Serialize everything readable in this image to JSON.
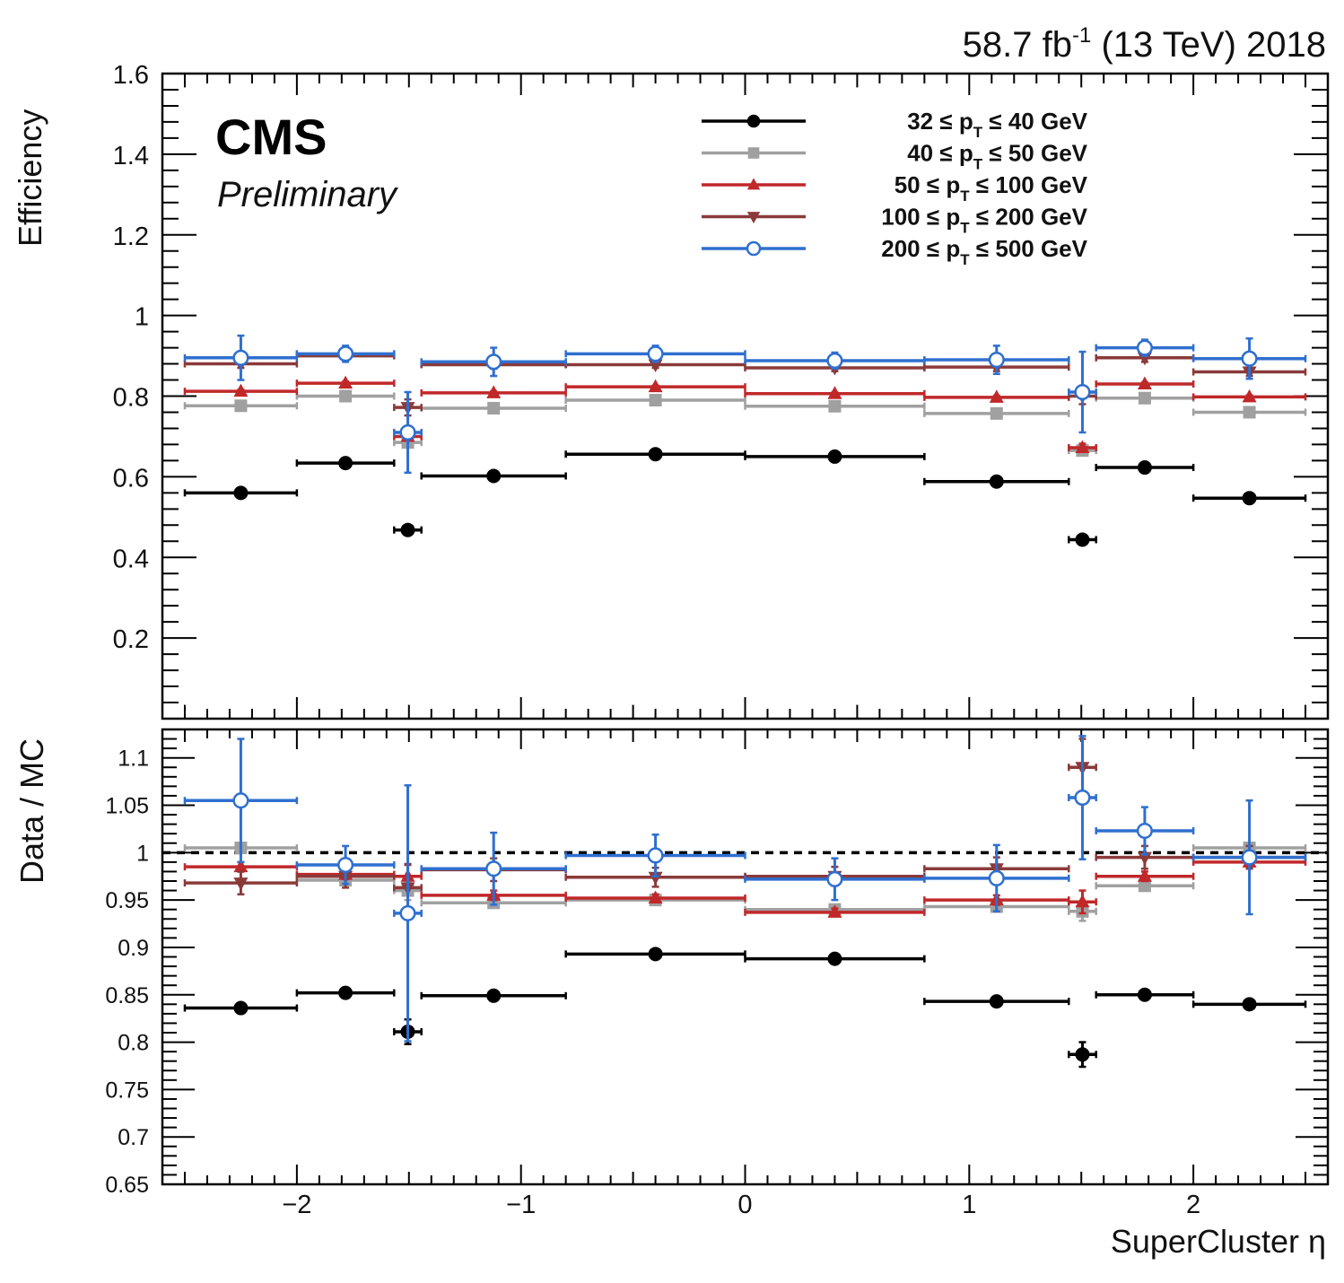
{
  "lumi_label": "58.7 fb",
  "lumi_superscript": "-1",
  "lumi_tail": " (13 TeV) 2018",
  "experiment_label": "CMS",
  "status_label": "Preliminary",
  "colors": {
    "pt32_40": "#000000",
    "pt40_50": "#a0a0a0",
    "pt50_100": "#c0282a",
    "pt100_200": "#8b3a3a",
    "pt200_500": "#2f6fcf"
  },
  "legend_pt_symbol": "p",
  "legend_pt_subscript": "T",
  "legend_le_symbol": "≤",
  "chart_data": [
    {
      "panel": "top",
      "type": "scatter",
      "ylabel": "Efficiency",
      "xlabel": "",
      "xlim": [
        -2.6,
        2.6
      ],
      "ylim": [
        0,
        1.6
      ],
      "yticks": [
        "0.2",
        "0.4",
        "0.6",
        "0.8",
        "1",
        "1.2",
        "1.4",
        "1.6"
      ],
      "bins": [
        [
          -2.5,
          -2.0
        ],
        [
          -2.0,
          -1.566
        ],
        [
          -1.566,
          -1.4442
        ],
        [
          -1.4442,
          -0.8
        ],
        [
          -0.8,
          0.0
        ],
        [
          0.0,
          0.8
        ],
        [
          0.8,
          1.4442
        ],
        [
          1.4442,
          1.566
        ],
        [
          1.566,
          2.0
        ],
        [
          2.0,
          2.5
        ]
      ],
      "x": [
        -2.25,
        -1.783,
        -1.505,
        -1.122,
        -0.4,
        0.4,
        1.122,
        1.505,
        1.783,
        2.25
      ],
      "legend_position": "top-right",
      "series": [
        {
          "name": "32 ≤ pT ≤ 40 GeV",
          "pt_low": "32",
          "pt_high": "40",
          "marker": "filled-circle",
          "color_key": "pt32_40",
          "values": [
            0.56,
            0.634,
            0.468,
            0.602,
            0.656,
            0.65,
            0.588,
            0.444,
            0.623,
            0.547
          ],
          "errors": [
            0.004,
            0.004,
            0.008,
            0.004,
            0.003,
            0.003,
            0.004,
            0.008,
            0.004,
            0.004
          ]
        },
        {
          "name": "40 ≤ pT ≤ 50 GeV",
          "pt_low": "40",
          "pt_high": "50",
          "marker": "filled-square",
          "color_key": "pt40_50",
          "values": [
            0.776,
            0.8,
            0.685,
            0.77,
            0.79,
            0.775,
            0.757,
            0.665,
            0.795,
            0.76
          ],
          "errors": [
            0.004,
            0.004,
            0.01,
            0.004,
            0.003,
            0.003,
            0.004,
            0.01,
            0.004,
            0.004
          ]
        },
        {
          "name": "50 ≤ pT ≤ 100 GeV",
          "pt_low": "50",
          "pt_high": "100",
          "marker": "filled-triangle-up",
          "color_key": "pt50_100",
          "values": [
            0.812,
            0.832,
            0.7,
            0.808,
            0.823,
            0.806,
            0.797,
            0.672,
            0.83,
            0.798
          ],
          "errors": [
            0.004,
            0.004,
            0.01,
            0.004,
            0.003,
            0.003,
            0.004,
            0.01,
            0.004,
            0.004
          ]
        },
        {
          "name": "100 ≤ pT ≤ 200 GeV",
          "pt_low": "100",
          "pt_high": "200",
          "marker": "filled-triangle-down",
          "color_key": "pt100_200",
          "values": [
            0.88,
            0.9,
            0.772,
            0.878,
            0.878,
            0.87,
            0.872,
            0.8,
            0.895,
            0.86
          ],
          "errors": [
            0.01,
            0.01,
            0.02,
            0.01,
            0.008,
            0.008,
            0.01,
            0.02,
            0.01,
            0.01
          ]
        },
        {
          "name": "200 ≤ pT ≤ 500 GeV",
          "pt_low": "200",
          "pt_high": "500",
          "marker": "open-circle",
          "color_key": "pt200_500",
          "values": [
            0.895,
            0.905,
            0.71,
            0.885,
            0.905,
            0.888,
            0.89,
            0.81,
            0.92,
            0.893
          ],
          "errors": [
            0.055,
            0.02,
            0.1,
            0.035,
            0.02,
            0.02,
            0.035,
            0.1,
            0.02,
            0.05
          ]
        }
      ]
    },
    {
      "panel": "bottom",
      "type": "scatter",
      "ylabel": "Data / MC",
      "xlabel": "SuperCluster η",
      "xlim": [
        -2.6,
        2.6
      ],
      "ylim": [
        0.65,
        1.13
      ],
      "yticks": [
        "0.65",
        "0.7",
        "0.75",
        "0.8",
        "0.85",
        "0.9",
        "0.95",
        "1",
        "1.05",
        "1.1"
      ],
      "xticks": [
        "−2",
        "−1",
        "0",
        "1",
        "2"
      ],
      "reference_line": 1.0,
      "bins": [
        [
          -2.5,
          -2.0
        ],
        [
          -2.0,
          -1.566
        ],
        [
          -1.566,
          -1.4442
        ],
        [
          -1.4442,
          -0.8
        ],
        [
          -0.8,
          0.0
        ],
        [
          0.0,
          0.8
        ],
        [
          0.8,
          1.4442
        ],
        [
          1.4442,
          1.566
        ],
        [
          1.566,
          2.0
        ],
        [
          2.0,
          2.5
        ]
      ],
      "x": [
        -2.25,
        -1.783,
        -1.505,
        -1.122,
        -0.4,
        0.4,
        1.122,
        1.505,
        1.783,
        2.25
      ],
      "series": [
        {
          "name": "32 ≤ pT ≤ 40 GeV",
          "color_key": "pt32_40",
          "marker": "filled-circle",
          "values": [
            0.836,
            0.852,
            0.811,
            0.849,
            0.893,
            0.888,
            0.843,
            0.787,
            0.85,
            0.84
          ],
          "errors": [
            0.003,
            0.003,
            0.013,
            0.003,
            0.003,
            0.003,
            0.003,
            0.013,
            0.003,
            0.003
          ]
        },
        {
          "name": "40 ≤ pT ≤ 50 GeV",
          "color_key": "pt40_50",
          "marker": "filled-square",
          "values": [
            1.005,
            0.971,
            0.96,
            0.947,
            0.95,
            0.94,
            0.943,
            0.938,
            0.965,
            1.005
          ],
          "errors": [
            0.004,
            0.004,
            0.01,
            0.004,
            0.003,
            0.003,
            0.004,
            0.01,
            0.004,
            0.004
          ]
        },
        {
          "name": "50 ≤ pT ≤ 100 GeV",
          "color_key": "pt50_100",
          "marker": "filled-triangle-up",
          "values": [
            0.985,
            0.977,
            0.975,
            0.955,
            0.952,
            0.937,
            0.95,
            0.948,
            0.975,
            0.99
          ],
          "errors": [
            0.005,
            0.005,
            0.012,
            0.005,
            0.004,
            0.004,
            0.005,
            0.012,
            0.005,
            0.005
          ]
        },
        {
          "name": "100 ≤ pT ≤ 200 GeV",
          "color_key": "pt100_200",
          "marker": "filled-triangle-down",
          "values": [
            0.968,
            0.975,
            0.963,
            0.982,
            0.974,
            0.975,
            0.983,
            1.09,
            0.995,
            0.995
          ],
          "errors": [
            0.012,
            0.012,
            0.025,
            0.012,
            0.01,
            0.01,
            0.012,
            0.03,
            0.012,
            0.012
          ]
        },
        {
          "name": "200 ≤ pT ≤ 500 GeV",
          "color_key": "pt200_500",
          "marker": "open-circle",
          "values": [
            1.055,
            0.987,
            0.936,
            0.983,
            0.997,
            0.972,
            0.973,
            1.058,
            1.023,
            0.995
          ],
          "errors": [
            0.065,
            0.02,
            0.135,
            0.038,
            0.022,
            0.022,
            0.035,
            0.065,
            0.025,
            0.06
          ]
        }
      ]
    }
  ]
}
